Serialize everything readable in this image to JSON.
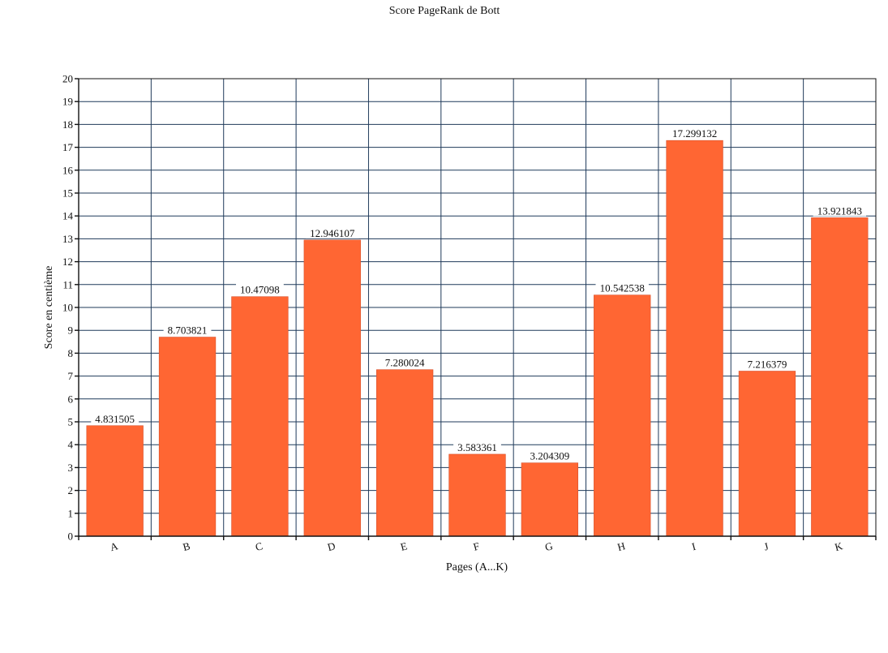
{
  "chart_data": {
    "type": "bar",
    "title": "Score PageRank de Bott",
    "xlabel": "Pages (A...K)",
    "ylabel": "Score en centième",
    "categories": [
      "A",
      "B",
      "C",
      "D",
      "E",
      "F",
      "G",
      "H",
      "I",
      "J",
      "K"
    ],
    "values": [
      4.831505,
      8.703821,
      10.47098,
      12.946107,
      7.280024,
      3.583361,
      3.204309,
      10.542538,
      17.299132,
      7.216379,
      13.921843
    ],
    "data_labels": [
      "4.831505",
      "8.703821",
      "10.47098",
      "12.946107",
      "7.280024",
      "3.583361",
      "3.204309",
      "10.542538",
      "17.299132",
      "7.216379",
      "13.921843"
    ],
    "ylim": [
      0,
      20
    ],
    "yticks": [
      "0",
      "1",
      "2",
      "3",
      "4",
      "5",
      "6",
      "7",
      "8",
      "9",
      "10",
      "11",
      "12",
      "13",
      "14",
      "15",
      "16",
      "17",
      "18",
      "19",
      "20"
    ],
    "grid": true,
    "bar_color": "#ff6633",
    "grid_color": "#1f3a5a"
  }
}
